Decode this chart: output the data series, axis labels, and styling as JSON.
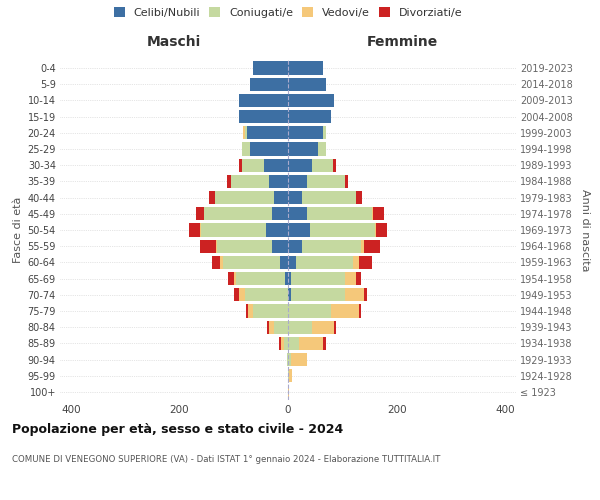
{
  "age_groups": [
    "100+",
    "95-99",
    "90-94",
    "85-89",
    "80-84",
    "75-79",
    "70-74",
    "65-69",
    "60-64",
    "55-59",
    "50-54",
    "45-49",
    "40-44",
    "35-39",
    "30-34",
    "25-29",
    "20-24",
    "15-19",
    "10-14",
    "5-9",
    "0-4"
  ],
  "birth_years": [
    "≤ 1923",
    "1924-1928",
    "1929-1933",
    "1934-1938",
    "1939-1943",
    "1944-1948",
    "1949-1953",
    "1954-1958",
    "1959-1963",
    "1964-1968",
    "1969-1973",
    "1974-1978",
    "1979-1983",
    "1984-1988",
    "1989-1993",
    "1994-1998",
    "1999-2003",
    "2004-2008",
    "2009-2013",
    "2014-2018",
    "2019-2023"
  ],
  "male_celibe": [
    0,
    0,
    0,
    0,
    0,
    0,
    0,
    5,
    15,
    30,
    40,
    30,
    25,
    35,
    45,
    70,
    75,
    90,
    90,
    70,
    65
  ],
  "male_coniugato": [
    0,
    0,
    2,
    8,
    25,
    65,
    80,
    90,
    105,
    100,
    120,
    125,
    110,
    70,
    40,
    15,
    5,
    0,
    0,
    0,
    0
  ],
  "male_vedovo": [
    0,
    0,
    0,
    5,
    10,
    8,
    10,
    5,
    5,
    3,
    3,
    0,
    0,
    0,
    0,
    0,
    2,
    0,
    0,
    0,
    0
  ],
  "male_divorziato": [
    0,
    0,
    0,
    3,
    3,
    5,
    10,
    10,
    15,
    30,
    20,
    15,
    10,
    8,
    5,
    0,
    0,
    0,
    0,
    0,
    0
  ],
  "female_celibe": [
    0,
    0,
    0,
    0,
    0,
    0,
    5,
    5,
    15,
    25,
    40,
    35,
    25,
    35,
    45,
    55,
    65,
    80,
    85,
    70,
    65
  ],
  "female_coniugata": [
    0,
    2,
    5,
    20,
    45,
    80,
    100,
    100,
    105,
    110,
    120,
    120,
    100,
    70,
    38,
    15,
    5,
    0,
    0,
    0,
    0
  ],
  "female_vedova": [
    2,
    5,
    30,
    45,
    40,
    50,
    35,
    20,
    10,
    5,
    3,
    2,
    0,
    0,
    0,
    0,
    0,
    0,
    0,
    0,
    0
  ],
  "female_divorziata": [
    0,
    0,
    0,
    5,
    3,
    5,
    5,
    10,
    25,
    30,
    20,
    20,
    12,
    5,
    5,
    0,
    0,
    0,
    0,
    0,
    0
  ],
  "color_celibe": "#3d6fa3",
  "color_coniugato": "#c5d9a0",
  "color_vedovo": "#f5c87a",
  "color_divorziato": "#cc2222",
  "title": "Popolazione per età, sesso e stato civile - 2024",
  "subtitle": "COMUNE DI VENEGONO SUPERIORE (VA) - Dati ISTAT 1° gennaio 2024 - Elaborazione TUTTITALIA.IT",
  "xlabel_left": "Maschi",
  "xlabel_right": "Femmine",
  "ylabel_left": "Fasce di età",
  "ylabel_right": "Anni di nascita",
  "xlim": 420,
  "bg_color": "#ffffff",
  "grid_color": "#cccccc",
  "legend_labels": [
    "Celibi/Nubili",
    "Coniugati/e",
    "Vedovi/e",
    "Divorziati/e"
  ]
}
